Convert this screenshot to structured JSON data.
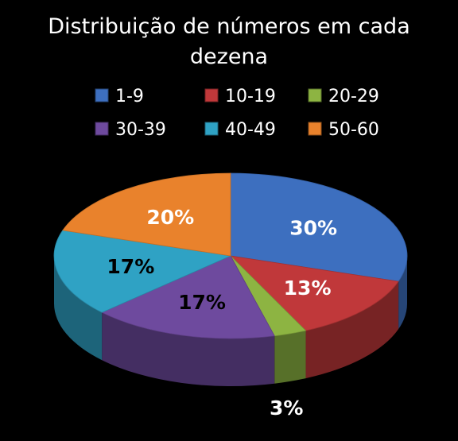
{
  "chart_data": {
    "type": "pie",
    "title": "Distribuição de números em cada dezena",
    "title_lines": [
      "Distribuição de números em cada",
      "dezena"
    ],
    "three_d": true,
    "legend_position": "top",
    "categories": [
      "1-9",
      "10-19",
      "20-29",
      "30-39",
      "40-49",
      "50-60"
    ],
    "values": [
      30,
      13,
      3,
      17,
      17,
      20
    ],
    "data_labels": [
      "30%",
      "13%",
      "3%",
      "17%",
      "17%",
      "20%"
    ],
    "colors": [
      "#3d6fbf",
      "#c0383a",
      "#8db442",
      "#6e4a9e",
      "#2fa2c4",
      "#e9822c"
    ],
    "label_colors": [
      "#ffffff",
      "#ffffff",
      "#ffffff",
      "#000000",
      "#000000",
      "#ffffff"
    ]
  }
}
